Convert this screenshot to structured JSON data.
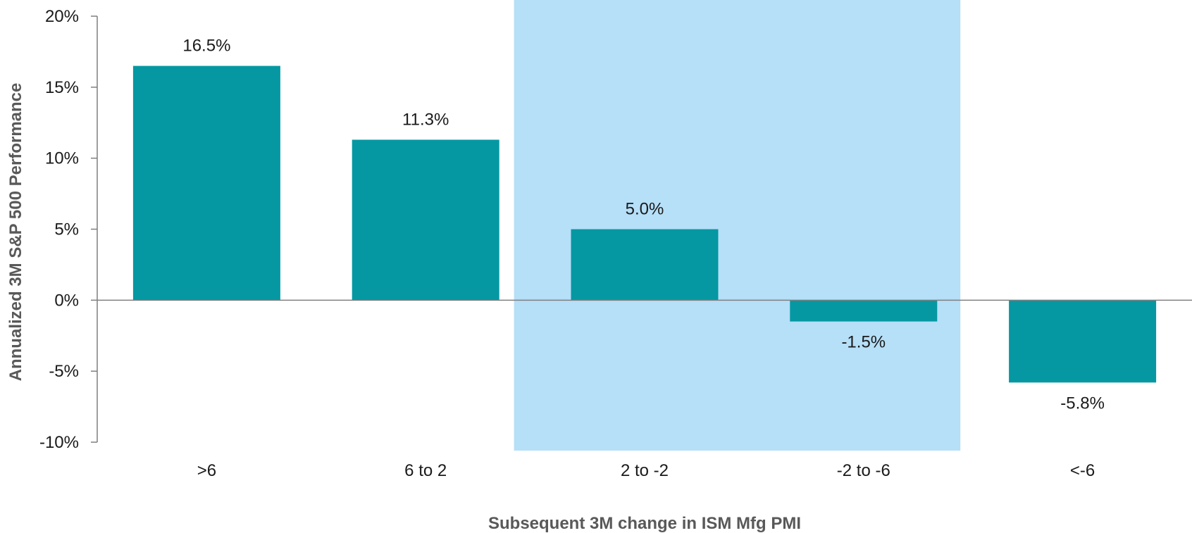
{
  "chart_data": {
    "type": "bar",
    "categories": [
      ">6",
      "6 to 2",
      "2 to -2",
      "-2 to -6",
      "<-6"
    ],
    "values": [
      16.5,
      11.3,
      5.0,
      -1.5,
      -5.8
    ],
    "value_labels": [
      "16.5%",
      "11.3%",
      "5.0%",
      "-1.5%",
      "-5.8%"
    ],
    "title": "",
    "xlabel": "Subsequent 3M change in ISM Mfg PMI",
    "ylabel": "Annualized 3M S&P 500 Performance",
    "ylim": [
      -10,
      20
    ],
    "yticks": [
      20,
      15,
      10,
      5,
      0,
      -5,
      -10
    ],
    "ytick_labels": [
      "20%",
      "15%",
      "10%",
      "5%",
      "0%",
      "-5%",
      "-10%"
    ],
    "highlight_categories": [
      "2 to -2",
      "-2 to -6"
    ],
    "grid": false,
    "legend": "none",
    "colors": {
      "bar": "#0598a2",
      "highlight": "#b6dff8",
      "axis": "#7f7f7f"
    }
  }
}
